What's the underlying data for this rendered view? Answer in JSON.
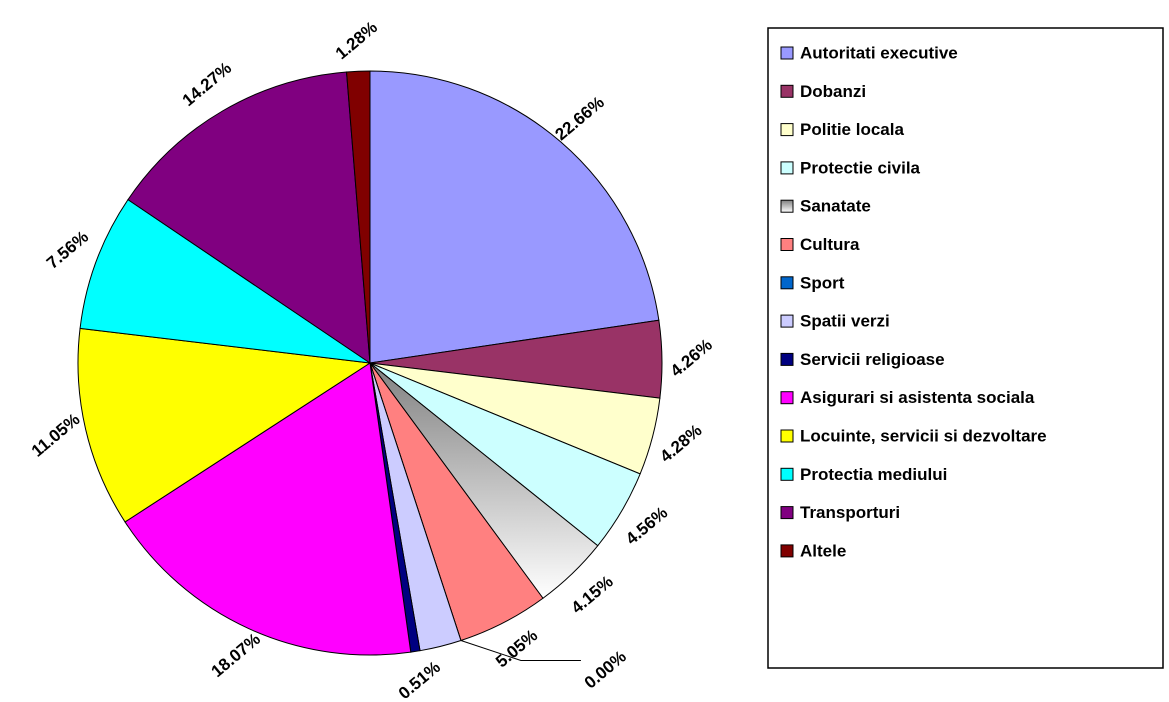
{
  "chart_data": {
    "type": "pie",
    "categories": [
      "Autoritati executive",
      "Dobanzi",
      "Politie locala",
      "Protectie civila",
      "Sanatate",
      "Cultura",
      "Sport",
      "Spatii verzi",
      "Servicii religioase",
      "Asigurari si asistenta sociala",
      "Locuinte, servicii si dezvoltare",
      "Protectia mediului",
      "Transporturi",
      "Altele"
    ],
    "values": [
      22.66,
      4.26,
      4.28,
      4.56,
      4.15,
      5.05,
      0,
      2.3,
      0.51,
      18.07,
      11.05,
      7.56,
      14.27,
      1.28
    ],
    "value_labels": [
      "22.66%",
      "4.26%",
      "4.28%",
      "4.56%",
      "4.15%",
      "5.05%",
      "0.00%",
      null,
      "0.51%",
      "18.07%",
      "11.05%",
      "7.56%",
      "14.27%",
      "1.28%"
    ],
    "colors": [
      "#9999ff",
      "#993366",
      "#ffffcc",
      "#ccffff",
      "#808080",
      "#ff8080",
      "#0066cc",
      "#ccccff",
      "#000080",
      "#ff00ff",
      "#ffff00",
      "#00ffff",
      "#800080",
      "#800000"
    ],
    "legend": "right"
  }
}
